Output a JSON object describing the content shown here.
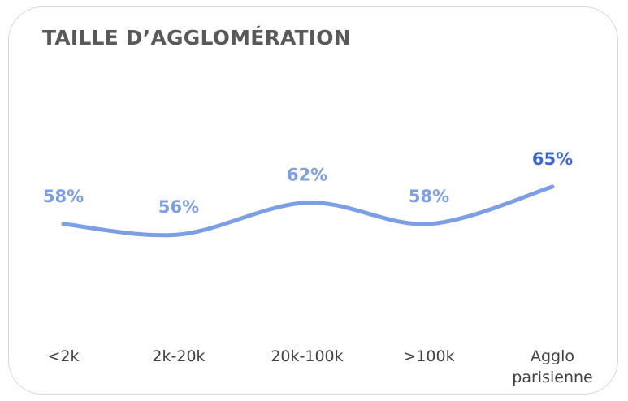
{
  "chart_data": {
    "type": "line",
    "title": "TAILLE D’AGGLOMÉRATION",
    "categories": [
      "<2k",
      "2k-20k",
      "20k-100k",
      ">100k",
      "Agglo parisienne"
    ],
    "series": [
      {
        "color": "#7b9ee6",
        "values": [
          58,
          56,
          62,
          58,
          65
        ],
        "value_labels": [
          "58%",
          "56%",
          "62%",
          "58%",
          "65%"
        ],
        "value_label_colors": [
          "#7b9ee6",
          "#7b9ee6",
          "#7b9ee6",
          "#7b9ee6",
          "#3a66d6"
        ]
      }
    ]
  }
}
